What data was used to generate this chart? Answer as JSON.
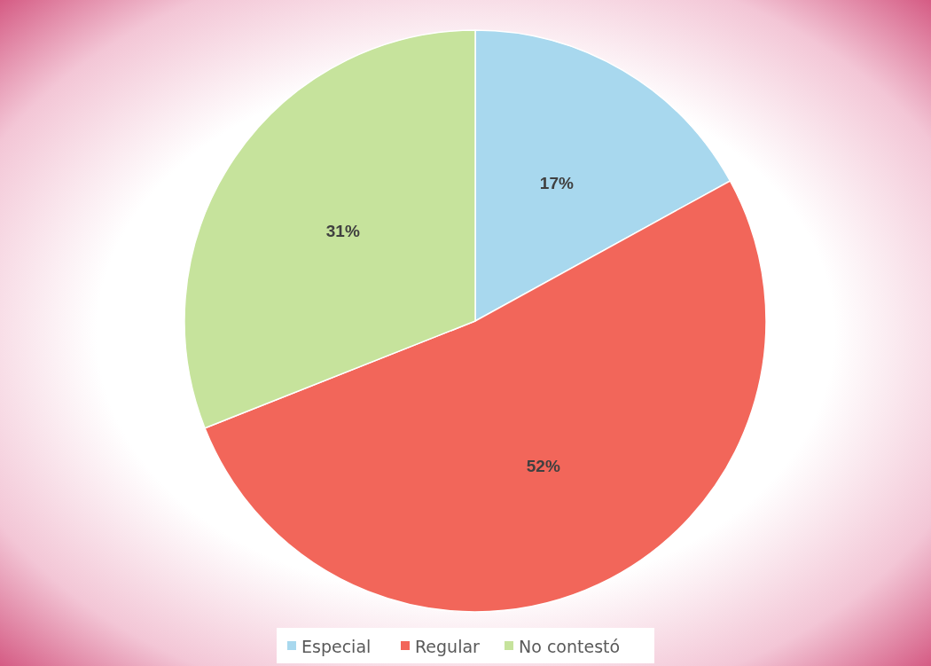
{
  "chart_data": {
    "type": "pie",
    "categories": [
      "Especial",
      "Regular",
      "No contestó"
    ],
    "values": [
      17,
      52,
      31
    ],
    "colors": [
      "#a8d8ee",
      "#f2665a",
      "#c6e39c"
    ],
    "value_labels": [
      "17%",
      "52%",
      "31%"
    ],
    "legend": "bottom"
  }
}
